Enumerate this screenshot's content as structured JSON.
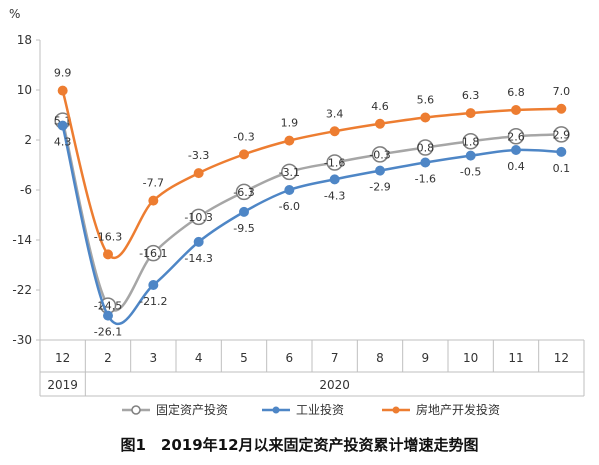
{
  "caption": "图1　2019年12月以来固定资产投资累计增速走势图",
  "chart_data": {
    "type": "line",
    "ylabel": "%",
    "ylim": [
      -30,
      18
    ],
    "yticks": [
      18,
      10,
      2,
      -6,
      -14,
      -22,
      -30
    ],
    "grid": false,
    "legend": "bottom",
    "categories": [
      "12",
      "2",
      "3",
      "4",
      "5",
      "6",
      "7",
      "8",
      "9",
      "10",
      "11",
      "12"
    ],
    "year_groups": [
      {
        "label": "2019",
        "span": 1
      },
      {
        "label": "2020",
        "span": 11
      }
    ],
    "series": [
      {
        "name": "固定资产投资",
        "color": "#a6a6a6",
        "marker": "open-circle",
        "values": [
          5.1,
          -24.5,
          -16.1,
          -10.3,
          -6.3,
          -3.1,
          -1.6,
          -0.3,
          0.8,
          1.8,
          2.6,
          2.9
        ],
        "labels": [
          "5.1",
          "-24.5",
          "-16.1",
          "-10.3",
          "-6.3",
          "-3.1",
          "-1.6",
          "-0.3",
          "0.8",
          "1.8",
          "2.6",
          "2.9"
        ]
      },
      {
        "name": "工业投资",
        "color": "#4e86c6",
        "marker": "dot",
        "values": [
          4.3,
          -26.1,
          -21.2,
          -14.3,
          -9.5,
          -6.0,
          -4.3,
          -2.9,
          -1.6,
          -0.5,
          0.4,
          0.1
        ],
        "labels": [
          "4.3",
          "-26.1",
          "-21.2",
          "-14.3",
          "-9.5",
          "-6.0",
          "-4.3",
          "-2.9",
          "-1.6",
          "-0.5",
          "0.4",
          "0.1"
        ]
      },
      {
        "name": "房地产开发投资",
        "color": "#ed7d31",
        "marker": "dot",
        "values": [
          9.9,
          -16.3,
          -7.7,
          -3.3,
          -0.3,
          1.9,
          3.4,
          4.6,
          5.6,
          6.3,
          6.8,
          7.0
        ],
        "labels": [
          "9.9",
          "-16.3",
          "-7.7",
          "-3.3",
          "-0.3",
          "1.9",
          "3.4",
          "4.6",
          "5.6",
          "6.3",
          "6.8",
          "7.0"
        ]
      }
    ]
  }
}
